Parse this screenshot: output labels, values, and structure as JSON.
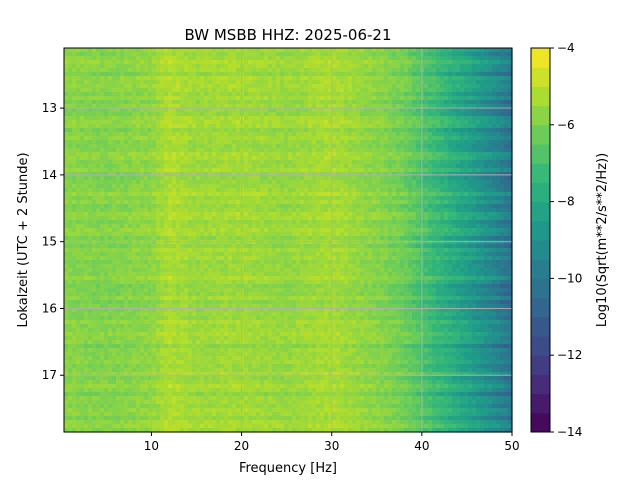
{
  "chart_data": {
    "type": "heatmap",
    "title": "BW MSBB  HHZ: 2025-06-21",
    "xlabel": "Frequency [Hz]",
    "ylabel": "Lokalzeit (UTC + 2 Stunde)",
    "colorbar_label": "Log10(Sqrt(m**2/s**2/Hz))",
    "colormap": "viridis",
    "x_range": [
      0.3,
      50
    ],
    "y_range": [
      12.1,
      17.85
    ],
    "y_inverted": true,
    "color_range": [
      -14,
      -4
    ],
    "x_ticks": [
      10,
      20,
      30,
      40,
      50
    ],
    "x_tick_labels": [
      "10",
      "20",
      "30",
      "40",
      "50"
    ],
    "y_ticks": [
      13,
      14,
      15,
      16,
      17
    ],
    "y_tick_labels": [
      "13",
      "14",
      "15",
      "16",
      "17"
    ],
    "colorbar_ticks": [
      -14,
      -12,
      -10,
      -8,
      -6,
      -4
    ],
    "colorbar_tick_labels": [
      "−14",
      "−12",
      "−10",
      "−8",
      "−6",
      "−4"
    ],
    "grid": true,
    "value_profile_by_frequency": {
      "frequency_hz": [
        0.5,
        5,
        10,
        12,
        15,
        20,
        25,
        30,
        35,
        38,
        40,
        42,
        45,
        48,
        50
      ],
      "log10_psd": [
        -5.8,
        -5.9,
        -5.7,
        -5.2,
        -5.5,
        -5.4,
        -5.6,
        -5.3,
        -5.8,
        -6.2,
        -6.8,
        -7.4,
        -8.3,
        -9.3,
        -10.2
      ]
    }
  }
}
